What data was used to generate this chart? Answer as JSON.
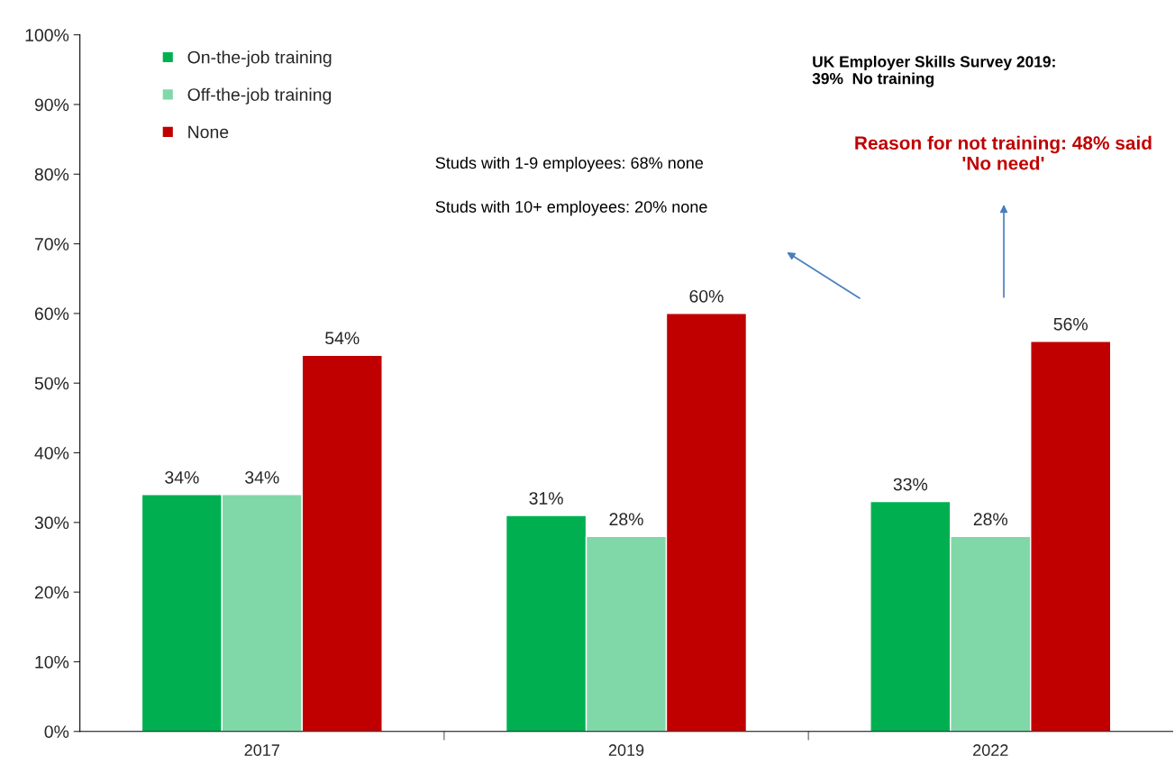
{
  "chart_data": {
    "type": "bar",
    "categories": [
      "2017",
      "2019",
      "2022"
    ],
    "series": [
      {
        "name": "On-the-job training",
        "color": "#00b050",
        "values": [
          34,
          31,
          33
        ],
        "value_labels": [
          "34%",
          "31%",
          "33%"
        ]
      },
      {
        "name": "Off-the-job training",
        "color": "#80d8a8",
        "values": [
          34,
          28,
          28
        ],
        "value_labels": [
          "34%",
          "28%",
          "28%"
        ]
      },
      {
        "name": "None",
        "color": "#c00000",
        "values": [
          54,
          60,
          56
        ],
        "value_labels": [
          "54%",
          "60%",
          "56%"
        ]
      }
    ],
    "ylim": [
      0,
      100
    ],
    "yticks": [
      {
        "value": 0,
        "label": "0%"
      },
      {
        "value": 10,
        "label": "10%"
      },
      {
        "value": 20,
        "label": "20%"
      },
      {
        "value": 30,
        "label": "30%"
      },
      {
        "value": 40,
        "label": "40%"
      },
      {
        "value": 50,
        "label": "50%"
      },
      {
        "value": 60,
        "label": "60%"
      },
      {
        "value": 70,
        "label": "70%"
      },
      {
        "value": 80,
        "label": "80%"
      },
      {
        "value": 90,
        "label": "90%"
      },
      {
        "value": 100,
        "label": "100%"
      }
    ],
    "legend": "top left",
    "grid": false,
    "annotations": [
      "UK Employer Skills Survey 2019:\n39%  No training",
      "Reason for not training: 48% said\n'No need'",
      "Studs with 1-9 employees: 68% none",
      "Studs with 10+ employees: 20% none"
    ]
  }
}
